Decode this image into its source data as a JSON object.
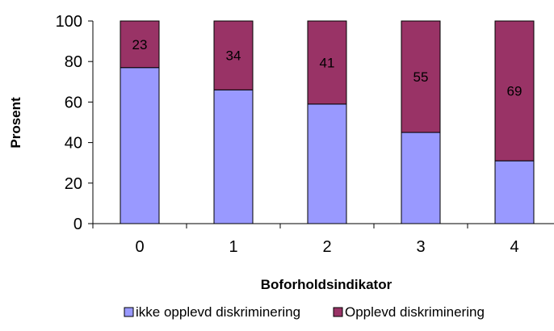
{
  "chart_data": {
    "type": "bar",
    "stacked": true,
    "categories": [
      "0",
      "1",
      "2",
      "3",
      "4"
    ],
    "series": [
      {
        "name": "ikke opplevd diskriminering",
        "values": [
          77,
          66,
          59,
          45,
          31
        ],
        "color": "#9999ff"
      },
      {
        "name": "Opplevd diskriminering",
        "values": [
          23,
          34,
          41,
          55,
          69
        ],
        "color": "#993366"
      }
    ],
    "data_labels_series": 1,
    "xlabel": "Boforholdsindikator",
    "ylabel": "Prosent",
    "ylim": [
      0,
      100
    ],
    "yticks": [
      0,
      20,
      40,
      60,
      80,
      100
    ],
    "grid": false,
    "legend": "bottom"
  }
}
